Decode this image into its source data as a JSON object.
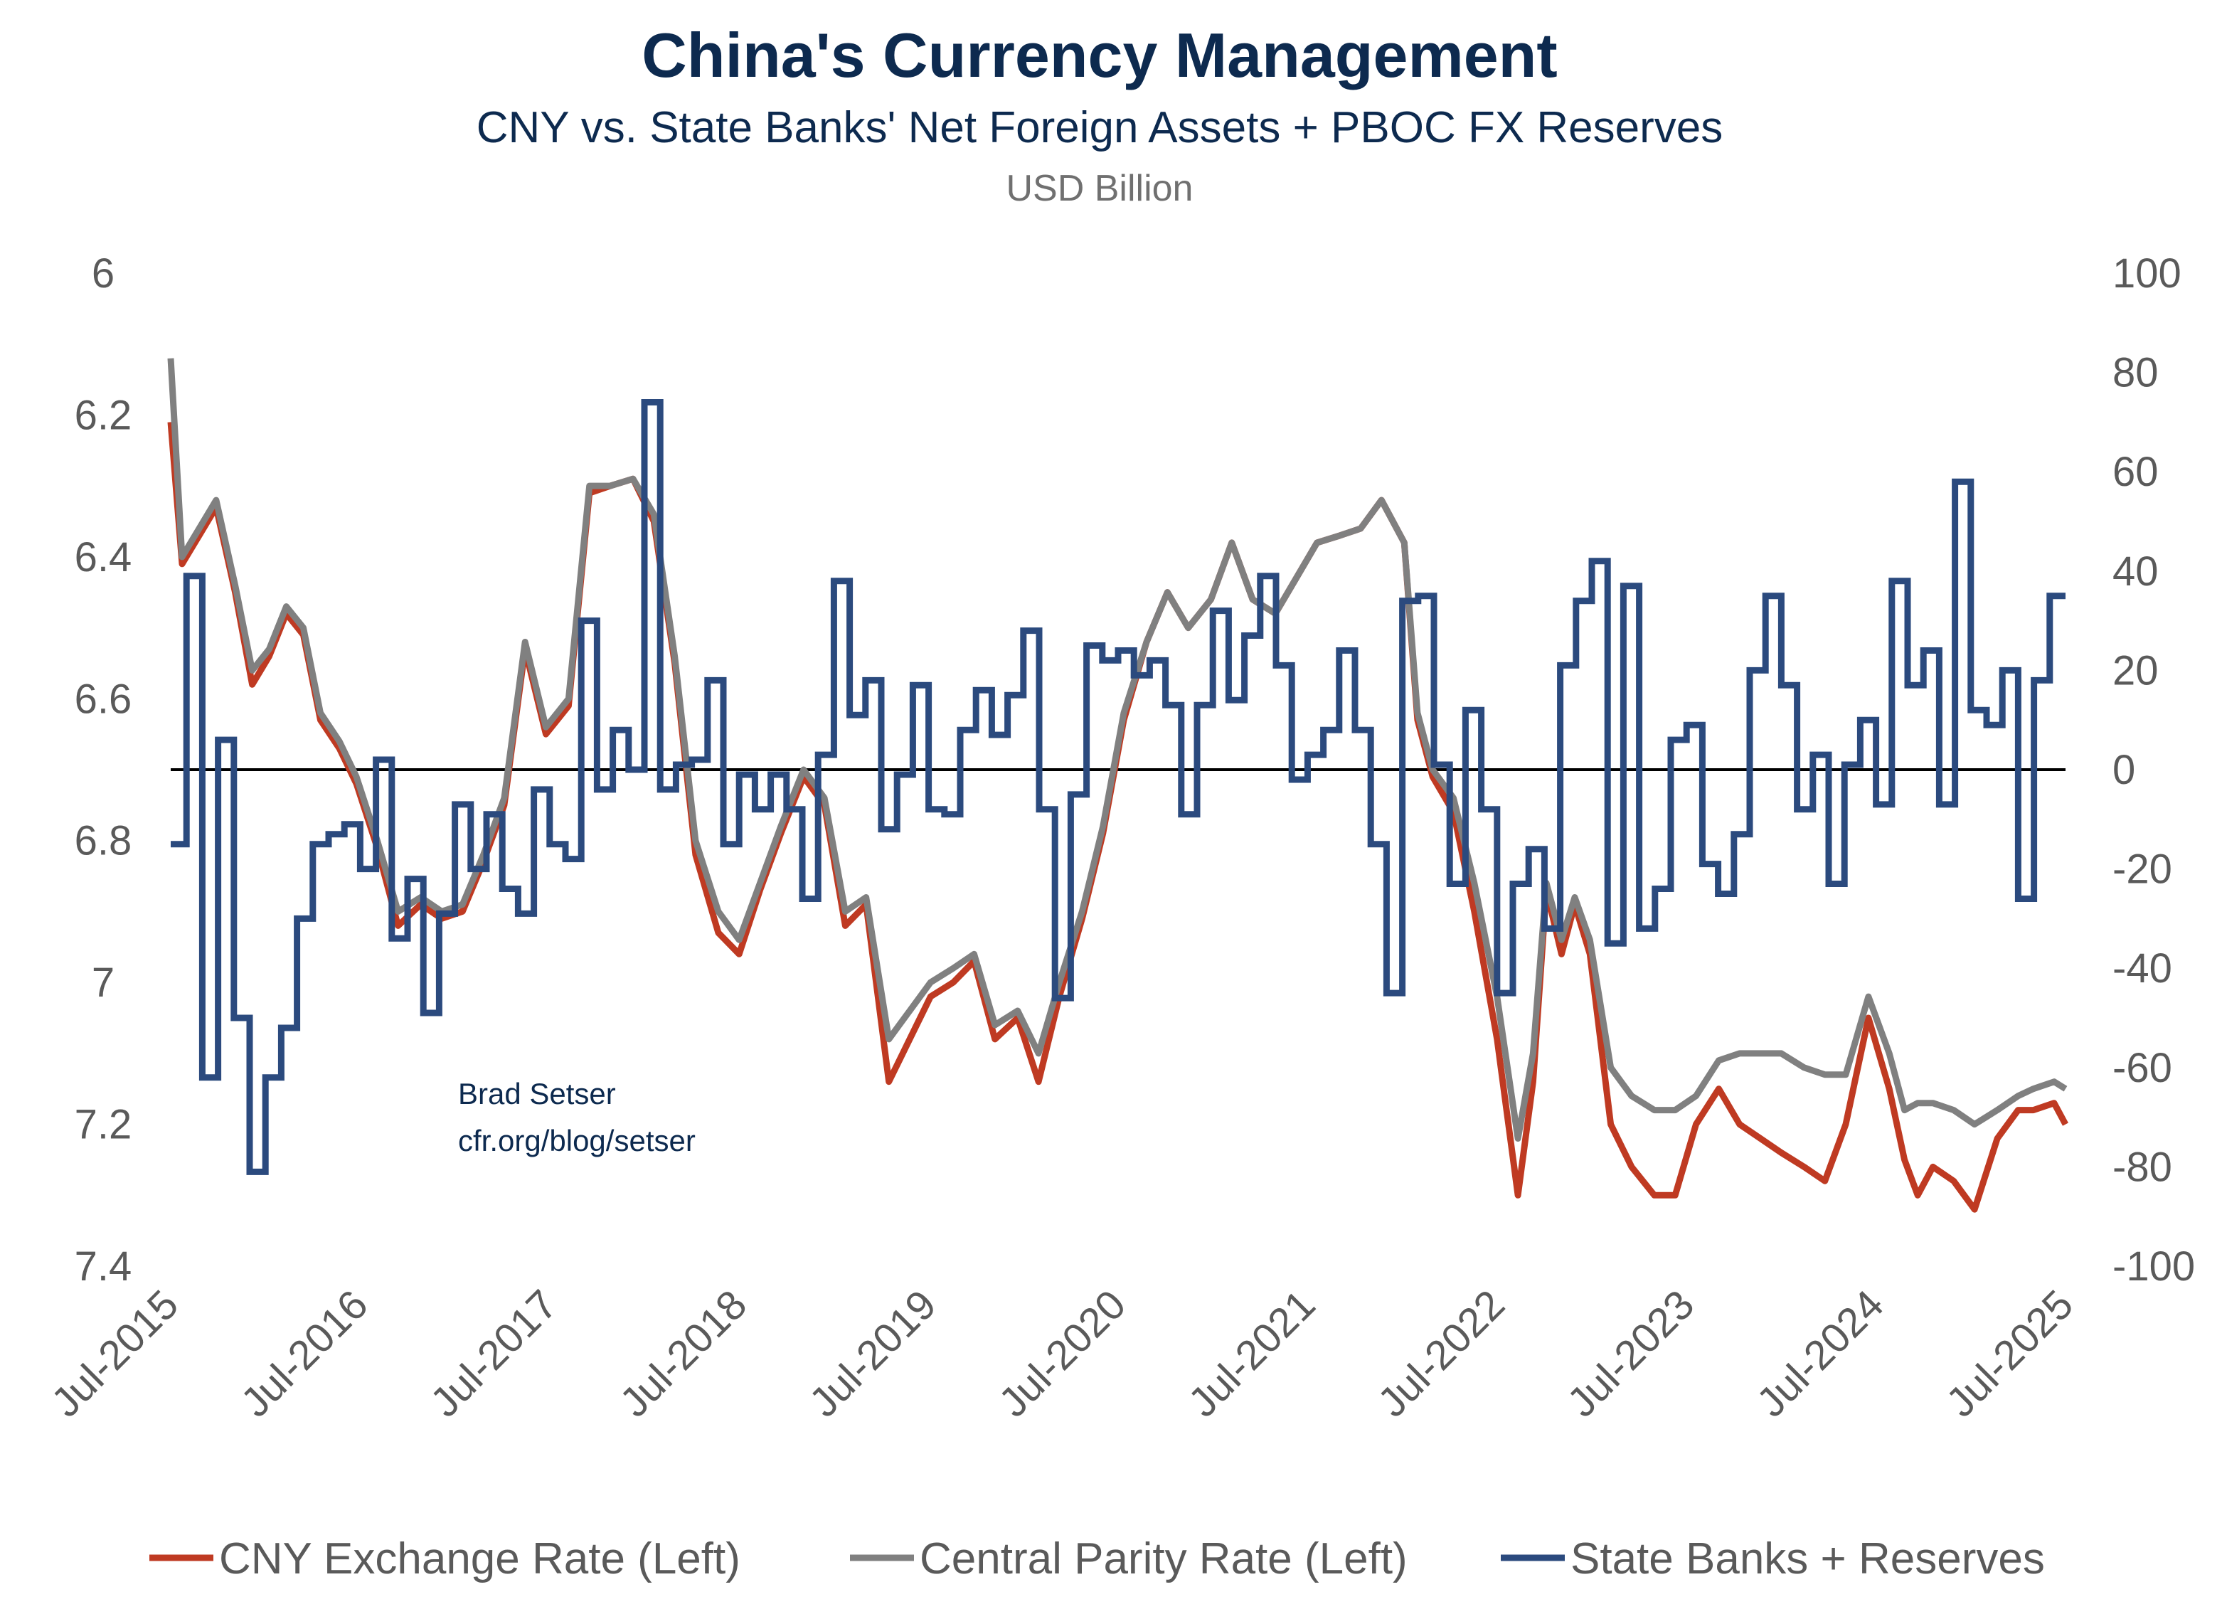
{
  "chart_data": {
    "type": "line",
    "title": "China's Currency Management",
    "subtitle": "CNY vs. State Banks' Net Foreign Assets + PBOC FX Reserves",
    "unit_label": "USD Billion",
    "annotation": [
      "Brad Setser",
      "cfr.org/blog/setser"
    ],
    "x_ticks": [
      "Jul-2015",
      "Jul-2016",
      "Jul-2017",
      "Jul-2018",
      "Jul-2019",
      "Jul-2020",
      "Jul-2021",
      "Jul-2022",
      "Jul-2023",
      "Jul-2024",
      "Jul-2025"
    ],
    "x_range": [
      2015.5,
      2025.5
    ],
    "left_axis": {
      "range": [
        6,
        7.4
      ],
      "inverted": true,
      "ticks": [
        "6",
        "6.2",
        "6.4",
        "6.6",
        "6.8",
        "7",
        "7.2",
        "7.4"
      ]
    },
    "right_axis": {
      "range": [
        -100,
        100
      ],
      "ticks": [
        "100",
        "80",
        "60",
        "40",
        "20",
        "0",
        "-20",
        "-40",
        "-60",
        "-80",
        "-100"
      ]
    },
    "legend": {
      "placement": "bottom",
      "items": [
        "CNY Exchange Rate (Left)",
        "Central Parity Rate (Left)",
        "State Banks + Reserves"
      ]
    },
    "colors": {
      "cny": "#bf3a22",
      "parity": "#808080",
      "banks": "#2b4a7e",
      "zero": "#000000"
    },
    "x_years": [
      2015.5,
      2015.56,
      2015.65,
      2015.74,
      2015.84,
      2015.93,
      2016.02,
      2016.11,
      2016.2,
      2016.29,
      2016.39,
      2016.48,
      2016.59,
      2016.7,
      2016.82,
      2016.93,
      2017.04,
      2017.15,
      2017.26,
      2017.37,
      2017.48,
      2017.6,
      2017.71,
      2017.82,
      2017.94,
      2018.05,
      2018.16,
      2018.27,
      2018.39,
      2018.5,
      2018.61,
      2018.72,
      2018.84,
      2018.95,
      2019.06,
      2019.17,
      2019.29,
      2019.4,
      2019.51,
      2019.63,
      2019.74,
      2019.85,
      2019.97,
      2020.08,
      2020.19,
      2020.31,
      2020.42,
      2020.53,
      2020.65,
      2020.76,
      2020.87,
      2020.99,
      2021.1,
      2021.21,
      2021.33,
      2021.44,
      2021.55,
      2021.67,
      2021.78,
      2021.89,
      2022.01,
      2022.08,
      2022.16,
      2022.27,
      2022.38,
      2022.5,
      2022.61,
      2022.69,
      2022.76,
      2022.84,
      2022.91,
      2022.99,
      2023.1,
      2023.21,
      2023.33,
      2023.44,
      2023.55,
      2023.67,
      2023.78,
      2023.89,
      2024.0,
      2024.12,
      2024.23,
      2024.34,
      2024.46,
      2024.57,
      2024.65,
      2024.72,
      2024.8,
      2024.91,
      2025.02,
      2025.14,
      2025.25,
      2025.33,
      2025.44,
      2025.5
    ],
    "parity": [
      6.12,
      6.4,
      6.36,
      6.32,
      6.44,
      6.56,
      6.53,
      6.47,
      6.5,
      6.62,
      6.66,
      6.71,
      6.8,
      6.9,
      6.88,
      6.9,
      6.89,
      6.82,
      6.74,
      6.52,
      6.64,
      6.6,
      6.3,
      6.3,
      6.29,
      6.34,
      6.54,
      6.8,
      6.9,
      6.94,
      6.86,
      6.78,
      6.7,
      6.74,
      6.9,
      6.88,
      7.08,
      7.04,
      7.0,
      6.98,
      6.96,
      7.06,
      7.04,
      7.1,
      7.0,
      6.9,
      6.78,
      6.62,
      6.52,
      6.45,
      6.5,
      6.46,
      6.38,
      6.46,
      6.48,
      6.43,
      6.38,
      6.37,
      6.36,
      6.32,
      6.38,
      6.62,
      6.7,
      6.74,
      6.86,
      7.02,
      7.22,
      7.1,
      6.86,
      6.94,
      6.88,
      6.94,
      7.12,
      7.16,
      7.18,
      7.18,
      7.16,
      7.11,
      7.1,
      7.1,
      7.1,
      7.12,
      7.13,
      7.13,
      7.02,
      7.1,
      7.18,
      7.17,
      7.17,
      7.18,
      7.2,
      7.18,
      7.16,
      7.15,
      7.14,
      7.15
    ],
    "cny": [
      6.21,
      6.41,
      6.37,
      6.33,
      6.45,
      6.58,
      6.54,
      6.48,
      6.51,
      6.63,
      6.67,
      6.72,
      6.81,
      6.92,
      6.89,
      6.91,
      6.9,
      6.83,
      6.75,
      6.53,
      6.65,
      6.61,
      6.31,
      6.3,
      6.29,
      6.35,
      6.55,
      6.82,
      6.93,
      6.96,
      6.87,
      6.79,
      6.71,
      6.75,
      6.92,
      6.89,
      7.14,
      7.08,
      7.02,
      7.0,
      6.97,
      7.08,
      7.05,
      7.14,
      7.02,
      6.91,
      6.79,
      6.63,
      6.52,
      6.45,
      6.5,
      6.46,
      6.38,
      6.46,
      6.48,
      6.43,
      6.38,
      6.37,
      6.36,
      6.32,
      6.38,
      6.63,
      6.71,
      6.76,
      6.9,
      7.08,
      7.3,
      7.14,
      6.87,
      6.96,
      6.89,
      6.96,
      7.2,
      7.26,
      7.3,
      7.3,
      7.2,
      7.15,
      7.2,
      7.22,
      7.24,
      7.26,
      7.28,
      7.2,
      7.05,
      7.15,
      7.25,
      7.3,
      7.26,
      7.28,
      7.32,
      7.22,
      7.18,
      7.18,
      7.17,
      7.2
    ],
    "banks_start": "Jul-2015",
    "banks_monthly": [
      -15,
      39,
      -62,
      6,
      -50,
      -81,
      -62,
      -52,
      -30,
      -15,
      -13,
      -11,
      -20,
      2,
      -34,
      -22,
      -49,
      -29,
      -7,
      -20,
      -9,
      -24,
      -29,
      -4,
      -15,
      -18,
      30,
      -4,
      8,
      0,
      74,
      -4,
      1,
      2,
      18,
      -15,
      -1,
      -8,
      -1,
      -8,
      -26,
      3,
      38,
      11,
      18,
      -12,
      -1,
      17,
      -8,
      -9,
      8,
      16,
      7,
      15,
      28,
      -8,
      -46,
      -5,
      25,
      22,
      24,
      19,
      22,
      13,
      -9,
      13,
      32,
      14,
      27,
      39,
      21,
      -2,
      3,
      8,
      24,
      8,
      -15,
      -45,
      34,
      35,
      1,
      -23,
      12,
      -8,
      -45,
      -23,
      -16,
      -32,
      21,
      34,
      42,
      -35,
      37,
      -32,
      -24,
      6,
      9,
      -19,
      -25,
      -13,
      20,
      35,
      17,
      -8,
      3,
      -23,
      1,
      10,
      -7,
      38,
      17,
      24,
      -7,
      58,
      12,
      9,
      20,
      -26,
      18,
      35
    ]
  }
}
